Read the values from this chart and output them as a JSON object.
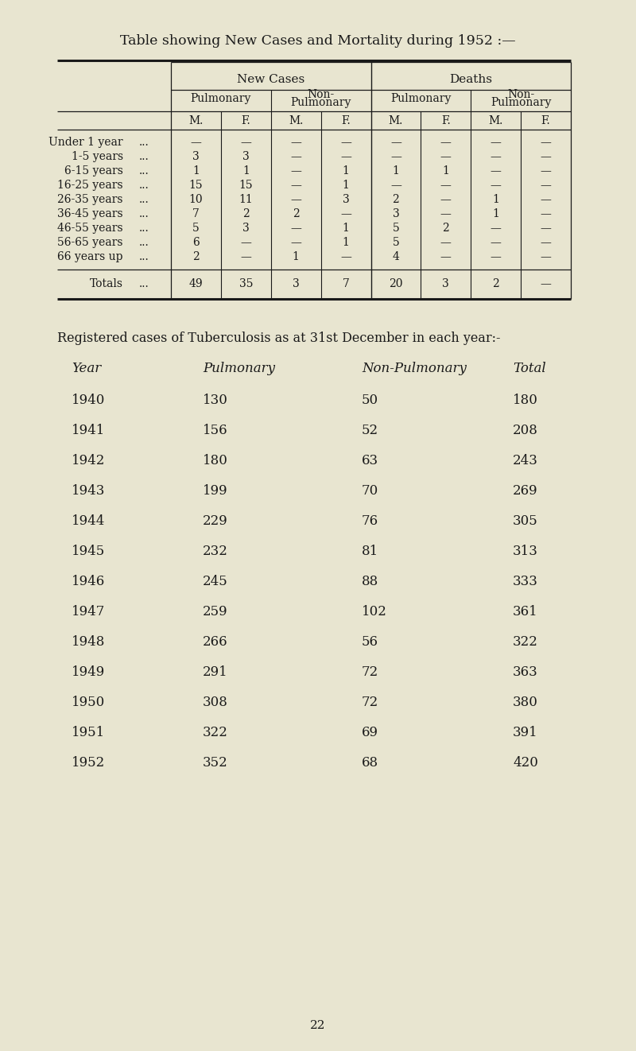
{
  "title": "Table showing New Cases and Mortality during 1952 :—",
  "bg_color": "#e8e5d0",
  "text_color": "#1a1a1a",
  "table1": {
    "rows": [
      {
        "label": "Under 1 year",
        "dots": "...",
        "vals": [
          "—",
          "—",
          "—",
          "—",
          "—",
          "—",
          "—",
          "—"
        ]
      },
      {
        "label": "1-5 years",
        "dots": "...",
        "vals": [
          "3",
          "3",
          "—",
          "—",
          "—",
          "—",
          "—",
          "—"
        ]
      },
      {
        "label": "6-15 years",
        "dots": "...",
        "vals": [
          "1",
          "1",
          "—",
          "1",
          "1",
          "1",
          "—",
          "—"
        ]
      },
      {
        "label": "16-25 years",
        "dots": "...",
        "vals": [
          "15",
          "15",
          "—",
          "1",
          "—",
          "—",
          "—",
          "—"
        ]
      },
      {
        "label": "26-35 years",
        "dots": "...",
        "vals": [
          "10",
          "11",
          "—",
          "3",
          "2",
          "—",
          "1",
          "—"
        ]
      },
      {
        "label": "36-45 years",
        "dots": "...",
        "vals": [
          "7",
          "2",
          "2",
          "—",
          "3",
          "—",
          "1",
          "—"
        ]
      },
      {
        "label": "46-55 years",
        "dots": "...",
        "vals": [
          "5",
          "3",
          "—",
          "1",
          "5",
          "2",
          "—",
          "—"
        ]
      },
      {
        "label": "56-65 years",
        "dots": "...",
        "vals": [
          "6",
          "—",
          "—",
          "1",
          "5",
          "—",
          "—",
          "—"
        ]
      },
      {
        "label": "66 years up",
        "dots": "...",
        "vals": [
          "2",
          "—",
          "1",
          "—",
          "4",
          "—",
          "—",
          "—"
        ]
      }
    ],
    "totals_vals": [
      "49",
      "35",
      "3",
      "7",
      "20",
      "3",
      "2",
      "—"
    ]
  },
  "section2_title": "Registered cases of Tuberculosis as at 31st December in each year:-",
  "table2_headers": [
    "Year",
    "Pulmonary",
    "Non-Pulmonary",
    "Total"
  ],
  "table2_rows": [
    [
      "1940",
      "130",
      "50",
      "180"
    ],
    [
      "1941",
      "156",
      "52",
      "208"
    ],
    [
      "1942",
      "180",
      "63",
      "243"
    ],
    [
      "1943",
      "199",
      "70",
      "269"
    ],
    [
      "1944",
      "229",
      "76",
      "305"
    ],
    [
      "1945",
      "232",
      "81",
      "313"
    ],
    [
      "1946",
      "245",
      "88",
      "333"
    ],
    [
      "1947",
      "259",
      "102",
      "361"
    ],
    [
      "1948",
      "266",
      "56",
      "322"
    ],
    [
      "1949",
      "291",
      "72",
      "363"
    ],
    [
      "1950",
      "308",
      "72",
      "380"
    ],
    [
      "1951",
      "322",
      "69",
      "391"
    ],
    [
      "1952",
      "352",
      "68",
      "420"
    ]
  ],
  "page_number": "22"
}
